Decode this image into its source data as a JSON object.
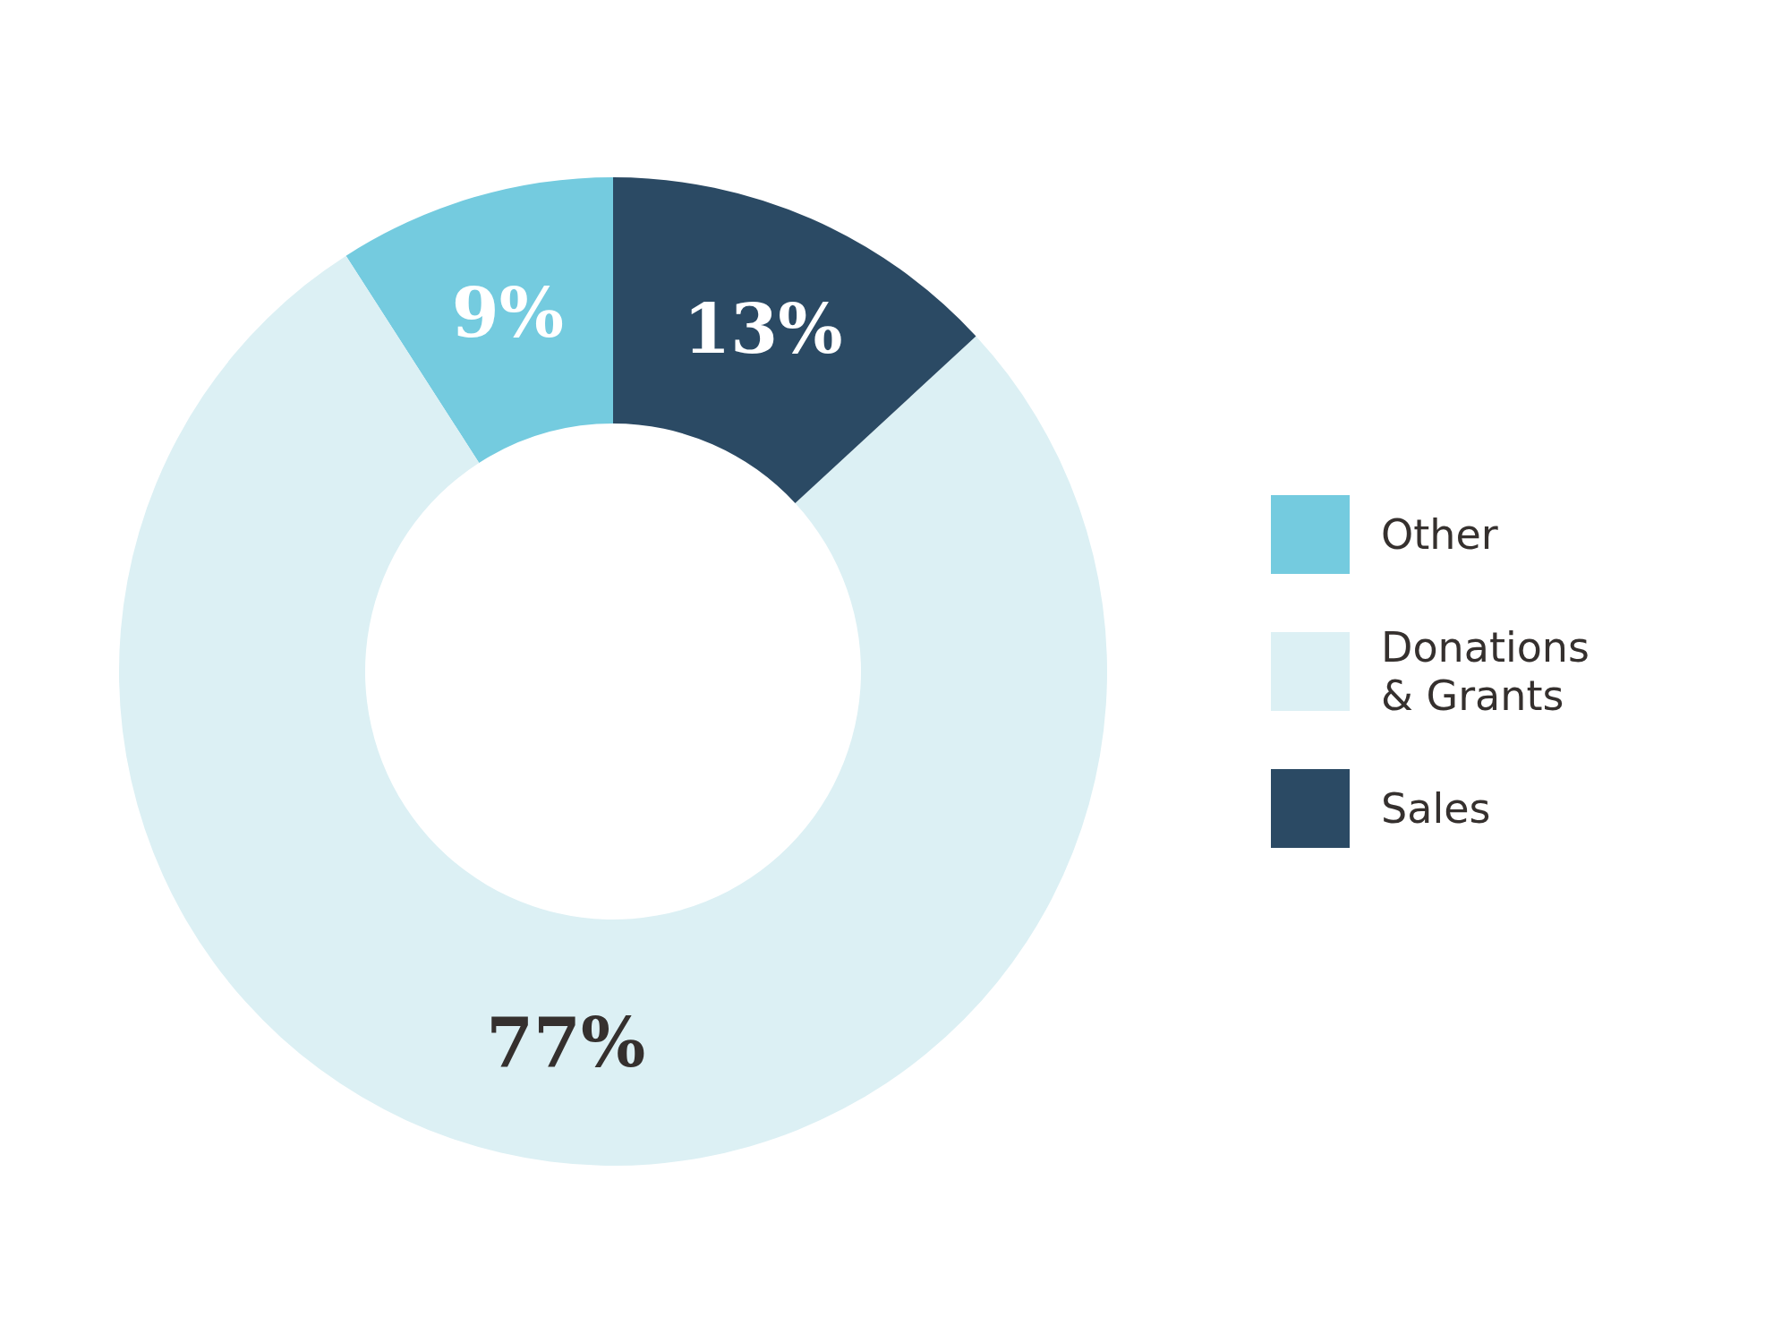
{
  "chart_data": {
    "type": "donut",
    "categories": [
      "Other",
      "Donations & Grants",
      "Sales"
    ],
    "values": [
      9,
      77,
      13
    ],
    "colors": [
      "#74cbdf",
      "#dcf0f4",
      "#2b4a64"
    ],
    "value_labels": [
      "9%",
      "77%",
      "13%"
    ],
    "legend": "right"
  }
}
